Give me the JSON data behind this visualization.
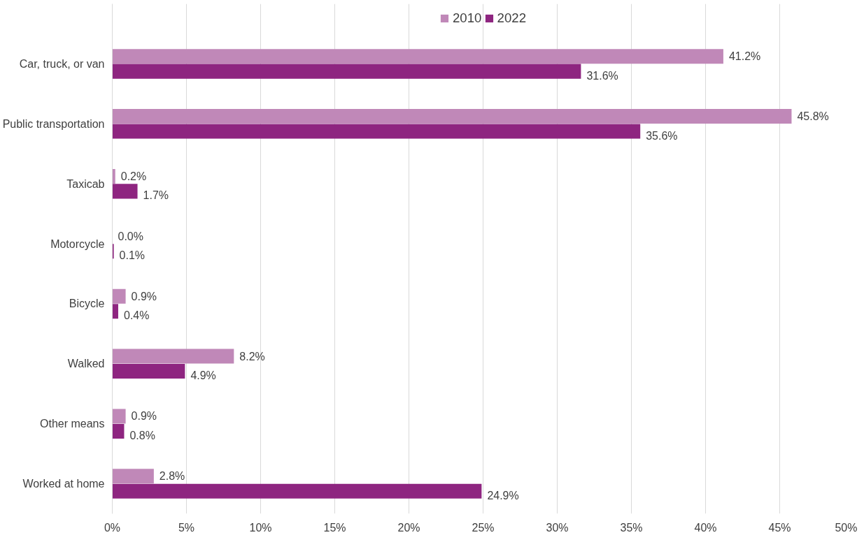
{
  "chart_data": {
    "type": "bar",
    "orientation": "horizontal",
    "categories": [
      "Car, truck, or van",
      "Public transportation",
      "Taxicab",
      "Motorcycle",
      "Bicycle",
      "Walked",
      "Other means",
      "Worked at home"
    ],
    "series": [
      {
        "name": "2010",
        "color": "#c088b8",
        "values": [
          41.2,
          45.8,
          0.2,
          0.0,
          0.9,
          8.2,
          0.9,
          2.8
        ],
        "value_labels": [
          "41.2%",
          "45.8%",
          "0.2%",
          "0.0%",
          "0.9%",
          "8.2%",
          "0.9%",
          "2.8%"
        ]
      },
      {
        "name": "2022",
        "color": "#8e2580",
        "values": [
          31.6,
          35.6,
          1.7,
          0.1,
          0.4,
          4.9,
          0.8,
          24.9
        ],
        "value_labels": [
          "31.6%",
          "35.6%",
          "1.7%",
          "0.1%",
          "0.4%",
          "4.9%",
          "0.8%",
          "24.9%"
        ]
      }
    ],
    "xlim": [
      0,
      50
    ],
    "xticks": [
      {
        "value": 0,
        "label": "0%"
      },
      {
        "value": 5,
        "label": "5%"
      },
      {
        "value": 10,
        "label": "10%"
      },
      {
        "value": 15,
        "label": "15%"
      },
      {
        "value": 20,
        "label": "20%"
      },
      {
        "value": 25,
        "label": "25%"
      },
      {
        "value": 30,
        "label": "30%"
      },
      {
        "value": 35,
        "label": "35%"
      },
      {
        "value": 40,
        "label": "40%"
      },
      {
        "value": 45,
        "label": "45%"
      },
      {
        "value": 50,
        "label": "50%"
      }
    ],
    "grid": "x",
    "legend": "top"
  }
}
